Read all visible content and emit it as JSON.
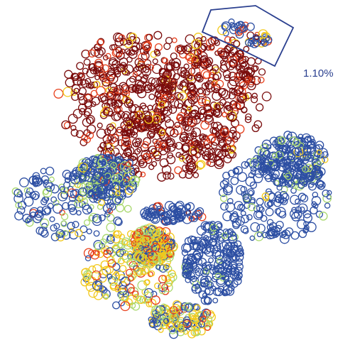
{
  "chart_data": {
    "type": "scatter",
    "title": "",
    "xlabel": "",
    "ylabel": "",
    "grid": false,
    "legend": "none",
    "annotations": [
      {
        "text": "1.10%",
        "refers_to": "gated-population"
      }
    ],
    "colors": {
      "high": "#7a0c0c",
      "mid_high": "#e8401c",
      "mid": "#f2c81a",
      "mid_low": "#a9d86e",
      "low": "#2d4fa3",
      "gate": "#2a3f8f",
      "label": "#2a3f8f"
    },
    "clusters": [
      {
        "id": "top-large",
        "dominant_level": "high",
        "share": 0.36
      },
      {
        "id": "left",
        "dominant_level": "low",
        "share": 0.14
      },
      {
        "id": "right",
        "dominant_level": "low",
        "share": 0.15
      },
      {
        "id": "bottom-left",
        "dominant_level": "mixed",
        "share": 0.13
      },
      {
        "id": "bottom-center",
        "dominant_level": "low",
        "share": 0.09
      },
      {
        "id": "bottom-tail",
        "dominant_level": "mixed",
        "share": 0.05
      },
      {
        "id": "center-bridge",
        "dominant_level": "low",
        "share": 0.03
      },
      {
        "id": "gated-population",
        "dominant_level": "mixed",
        "share": 0.011
      }
    ]
  }
}
